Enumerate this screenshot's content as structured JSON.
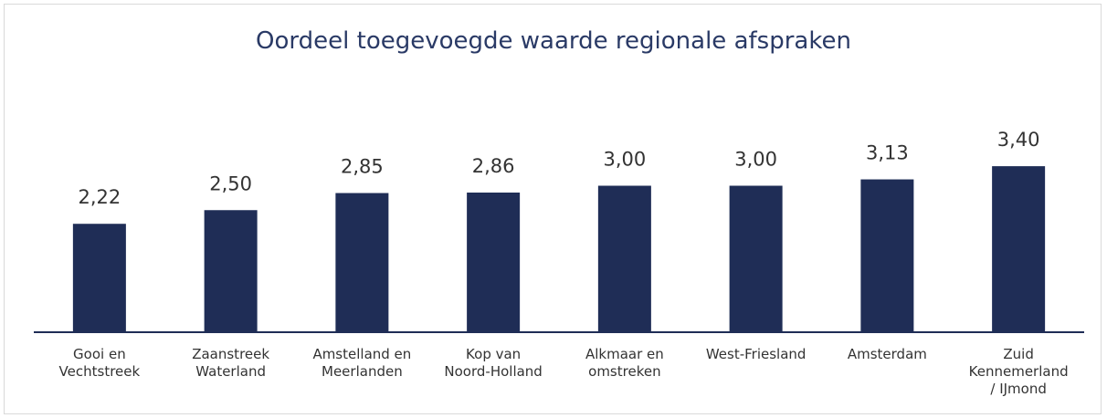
{
  "chart_data": {
    "type": "bar",
    "title": "Oordeel toegevoegde waarde regionale afspraken",
    "categories": [
      "Gooi en\nVechtstreek",
      "Zaanstreek\nWaterland",
      "Amstelland en\nMeerlanden",
      "Kop van\nNoord-Holland",
      "Alkmaar en\nomstreken",
      "West-Friesland",
      "Amsterdam",
      "Zuid\nKennemerland\n/ IJmond"
    ],
    "values": [
      2.22,
      2.5,
      2.85,
      2.86,
      3.0,
      3.0,
      3.13,
      3.4
    ],
    "value_labels": [
      "2,22",
      "2,50",
      "2,85",
      "2,86",
      "3,00",
      "3,00",
      "3,13",
      "3,40"
    ],
    "color": "#1f2d56",
    "ylim": [
      0,
      4
    ]
  }
}
